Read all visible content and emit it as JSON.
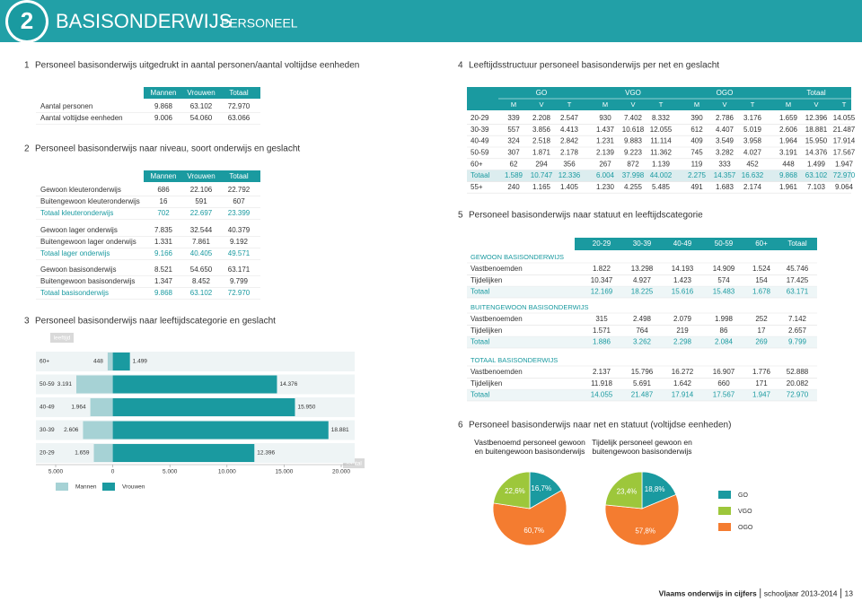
{
  "header": {
    "number": "2",
    "title": "BASISONDERWIJS",
    "subtitle": "PERSONEEL"
  },
  "section1": {
    "number": "1",
    "title": "Personeel basisonderwijs uitgedrukt in aantal personen/aantal voltijdse eenheden",
    "columns": [
      "Mannen",
      "Vrouwen",
      "Totaal"
    ],
    "rows": [
      {
        "label": "Aantal personen",
        "cells": [
          "9.868",
          "63.102",
          "72.970"
        ]
      },
      {
        "label": "Aantal voltijdse eenheden",
        "cells": [
          "9.006",
          "54.060",
          "63.066"
        ]
      }
    ]
  },
  "section2": {
    "number": "2",
    "title": "Personeel basisonderwijs naar niveau, soort onderwijs en geslacht",
    "columns": [
      "Mannen",
      "Vrouwen",
      "Totaal"
    ],
    "groups": [
      [
        {
          "label": "Gewoon kleuteronderwijs",
          "cells": [
            "686",
            "22.106",
            "22.792"
          ]
        },
        {
          "label": "Buitengewoon kleuteronderwijs",
          "cells": [
            "16",
            "591",
            "607"
          ]
        },
        {
          "label": "Totaal kleuteronderwijs",
          "cells": [
            "702",
            "22.697",
            "23.399"
          ]
        }
      ],
      [
        {
          "label": "Gewoon lager onderwijs",
          "cells": [
            "7.835",
            "32.544",
            "40.379"
          ]
        },
        {
          "label": "Buitengewoon lager onderwijs",
          "cells": [
            "1.331",
            "7.861",
            "9.192"
          ]
        },
        {
          "label": "Totaal lager onderwijs",
          "cells": [
            "9.166",
            "40.405",
            "49.571"
          ]
        }
      ],
      [
        {
          "label": "Gewoon basisonderwijs",
          "cells": [
            "8.521",
            "54.650",
            "63.171"
          ]
        },
        {
          "label": "Buitengewoon basisonderwijs",
          "cells": [
            "1.347",
            "8.452",
            "9.799"
          ]
        },
        {
          "label": "Totaal basisonderwijs",
          "cells": [
            "9.868",
            "63.102",
            "72.970"
          ]
        }
      ]
    ]
  },
  "section3": {
    "number": "3",
    "title": "Personeel basisonderwijs naar leeftijdscategorie en geslacht"
  },
  "section4": {
    "number": "4",
    "title": "Leeftijdsstructuur personeel basisonderwijs per net en geslacht",
    "groups": [
      "GO",
      "VGO",
      "OGO",
      "Totaal"
    ],
    "subcolumns": [
      "M",
      "V",
      "T"
    ],
    "rows": [
      {
        "label": "20-29",
        "cells": [
          "339",
          "2.208",
          "2.547",
          "930",
          "7.402",
          "8.332",
          "390",
          "2.786",
          "3.176",
          "1.659",
          "12.396",
          "14.055"
        ]
      },
      {
        "label": "30-39",
        "cells": [
          "557",
          "3.856",
          "4.413",
          "1.437",
          "10.618",
          "12.055",
          "612",
          "4.407",
          "5.019",
          "2.606",
          "18.881",
          "21.487"
        ]
      },
      {
        "label": "40-49",
        "cells": [
          "324",
          "2.518",
          "2.842",
          "1.231",
          "9.883",
          "11.114",
          "409",
          "3.549",
          "3.958",
          "1.964",
          "15.950",
          "17.914"
        ]
      },
      {
        "label": "50-59",
        "cells": [
          "307",
          "1.871",
          "2.178",
          "2.139",
          "9.223",
          "11.362",
          "745",
          "3.282",
          "4.027",
          "3.191",
          "14.376",
          "17.567"
        ]
      },
      {
        "label": "60+",
        "cells": [
          "62",
          "294",
          "356",
          "267",
          "872",
          "1.139",
          "119",
          "333",
          "452",
          "448",
          "1.499",
          "1.947"
        ]
      },
      {
        "label": "Totaal",
        "cells": [
          "1.589",
          "10.747",
          "12.336",
          "6.004",
          "37.998",
          "44.002",
          "2.275",
          "14.357",
          "16.632",
          "9.868",
          "63.102",
          "72.970"
        ]
      },
      {
        "label": "55+",
        "cells": [
          "240",
          "1.165",
          "1.405",
          "1.230",
          "4.255",
          "5.485",
          "491",
          "1.683",
          "2.174",
          "1.961",
          "7.103",
          "9.064"
        ]
      }
    ]
  },
  "section5": {
    "number": "5",
    "title": "Personeel basisonderwijs naar statuut en leeftijdscategorie",
    "columns": [
      "20-29",
      "30-39",
      "40-49",
      "50-59",
      "60+",
      "Totaal"
    ],
    "groups": [
      {
        "title": "GEWOON BASISONDERWIJS",
        "rows": [
          {
            "label": "Vastbenoemden",
            "cells": [
              "1.822",
              "13.298",
              "14.193",
              "14.909",
              "1.524",
              "45.746"
            ]
          },
          {
            "label": "Tijdelijken",
            "cells": [
              "10.347",
              "4.927",
              "1.423",
              "574",
              "154",
              "17.425"
            ]
          },
          {
            "label": "Totaal",
            "cells": [
              "12.169",
              "18.225",
              "15.616",
              "15.483",
              "1.678",
              "63.171"
            ]
          }
        ]
      },
      {
        "title": "BUITENGEWOON BASISONDERWIJS",
        "rows": [
          {
            "label": "Vastbenoemden",
            "cells": [
              "315",
              "2.498",
              "2.079",
              "1.998",
              "252",
              "7.142"
            ]
          },
          {
            "label": "Tijdelijken",
            "cells": [
              "1.571",
              "764",
              "219",
              "86",
              "17",
              "2.657"
            ]
          },
          {
            "label": "Totaal",
            "cells": [
              "1.886",
              "3.262",
              "2.298",
              "2.084",
              "269",
              "9.799"
            ]
          }
        ]
      },
      {
        "title": "TOTAAL BASISONDERWIJS",
        "rows": [
          {
            "label": "Vastbenoemden",
            "cells": [
              "2.137",
              "15.796",
              "16.272",
              "16.907",
              "1.776",
              "52.888"
            ]
          },
          {
            "label": "Tijdelijken",
            "cells": [
              "11.918",
              "5.691",
              "1.642",
              "660",
              "171",
              "20.082"
            ]
          },
          {
            "label": "Totaal",
            "cells": [
              "14.055",
              "21.487",
              "17.914",
              "17.567",
              "1.947",
              "72.970"
            ]
          }
        ]
      }
    ]
  },
  "section6": {
    "number": "6",
    "title": "Personeel basisonderwijs naar net en statuut (voltijdse eenheden)",
    "legend": [
      {
        "name": "GO",
        "color": "#1a9aa0"
      },
      {
        "name": "VGO",
        "color": "#9dc73b"
      },
      {
        "name": "OGO",
        "color": "#f47c30"
      }
    ]
  },
  "chart_data": [
    {
      "type": "bar",
      "ylabel": "leeftijd",
      "xlabel": "aantal",
      "categories": [
        "60+",
        "50-59",
        "40-49",
        "30-39",
        "20-29"
      ],
      "series": [
        {
          "name": "Mannen",
          "color": "#a6d2d5",
          "values": [
            448,
            3191,
            1964,
            2606,
            1659
          ],
          "value_labels": [
            "448",
            "3.191",
            "1.964",
            "2.606",
            "1.659"
          ]
        },
        {
          "name": "Vrouwen",
          "color": "#1a9aa0",
          "values": [
            1499,
            14376,
            15950,
            18881,
            12396
          ],
          "value_labels": [
            "1.499",
            "14.376",
            "15.950",
            "18.881",
            "12.396"
          ]
        }
      ],
      "xlim": [
        -5000,
        20000
      ],
      "xticks": [
        {
          "value": -5000,
          "label": "5.000"
        },
        0,
        {
          "value": 5000,
          "label": "5.000"
        },
        {
          "value": 10000,
          "label": "10.000"
        },
        {
          "value": 15000,
          "label": "15.000"
        },
        {
          "value": 20000,
          "label": "20.000"
        }
      ]
    },
    {
      "type": "pie",
      "title": "Vastbenoemd personeel gewoon en buitengewoon basisonderwijs",
      "values": [
        16.7,
        60.7,
        22.6
      ],
      "value_labels": [
        "16,7%",
        "60,7%",
        "22,6%"
      ],
      "colors": [
        "#1a9aa0",
        "#f47c30",
        "#9dc73b"
      ]
    },
    {
      "type": "pie",
      "title": "Tijdelijk personeel gewoon en buitengewoon basisonderwijs",
      "values": [
        18.8,
        57.8,
        23.4
      ],
      "value_labels": [
        "18,8%",
        "57,8%",
        "23,4%"
      ],
      "colors": [
        "#1a9aa0",
        "#f47c30",
        "#9dc73b"
      ]
    }
  ],
  "footer": {
    "publication": "Vlaams onderwijs in cijfers",
    "year": "schooljaar 2013-2014",
    "page": "13"
  }
}
